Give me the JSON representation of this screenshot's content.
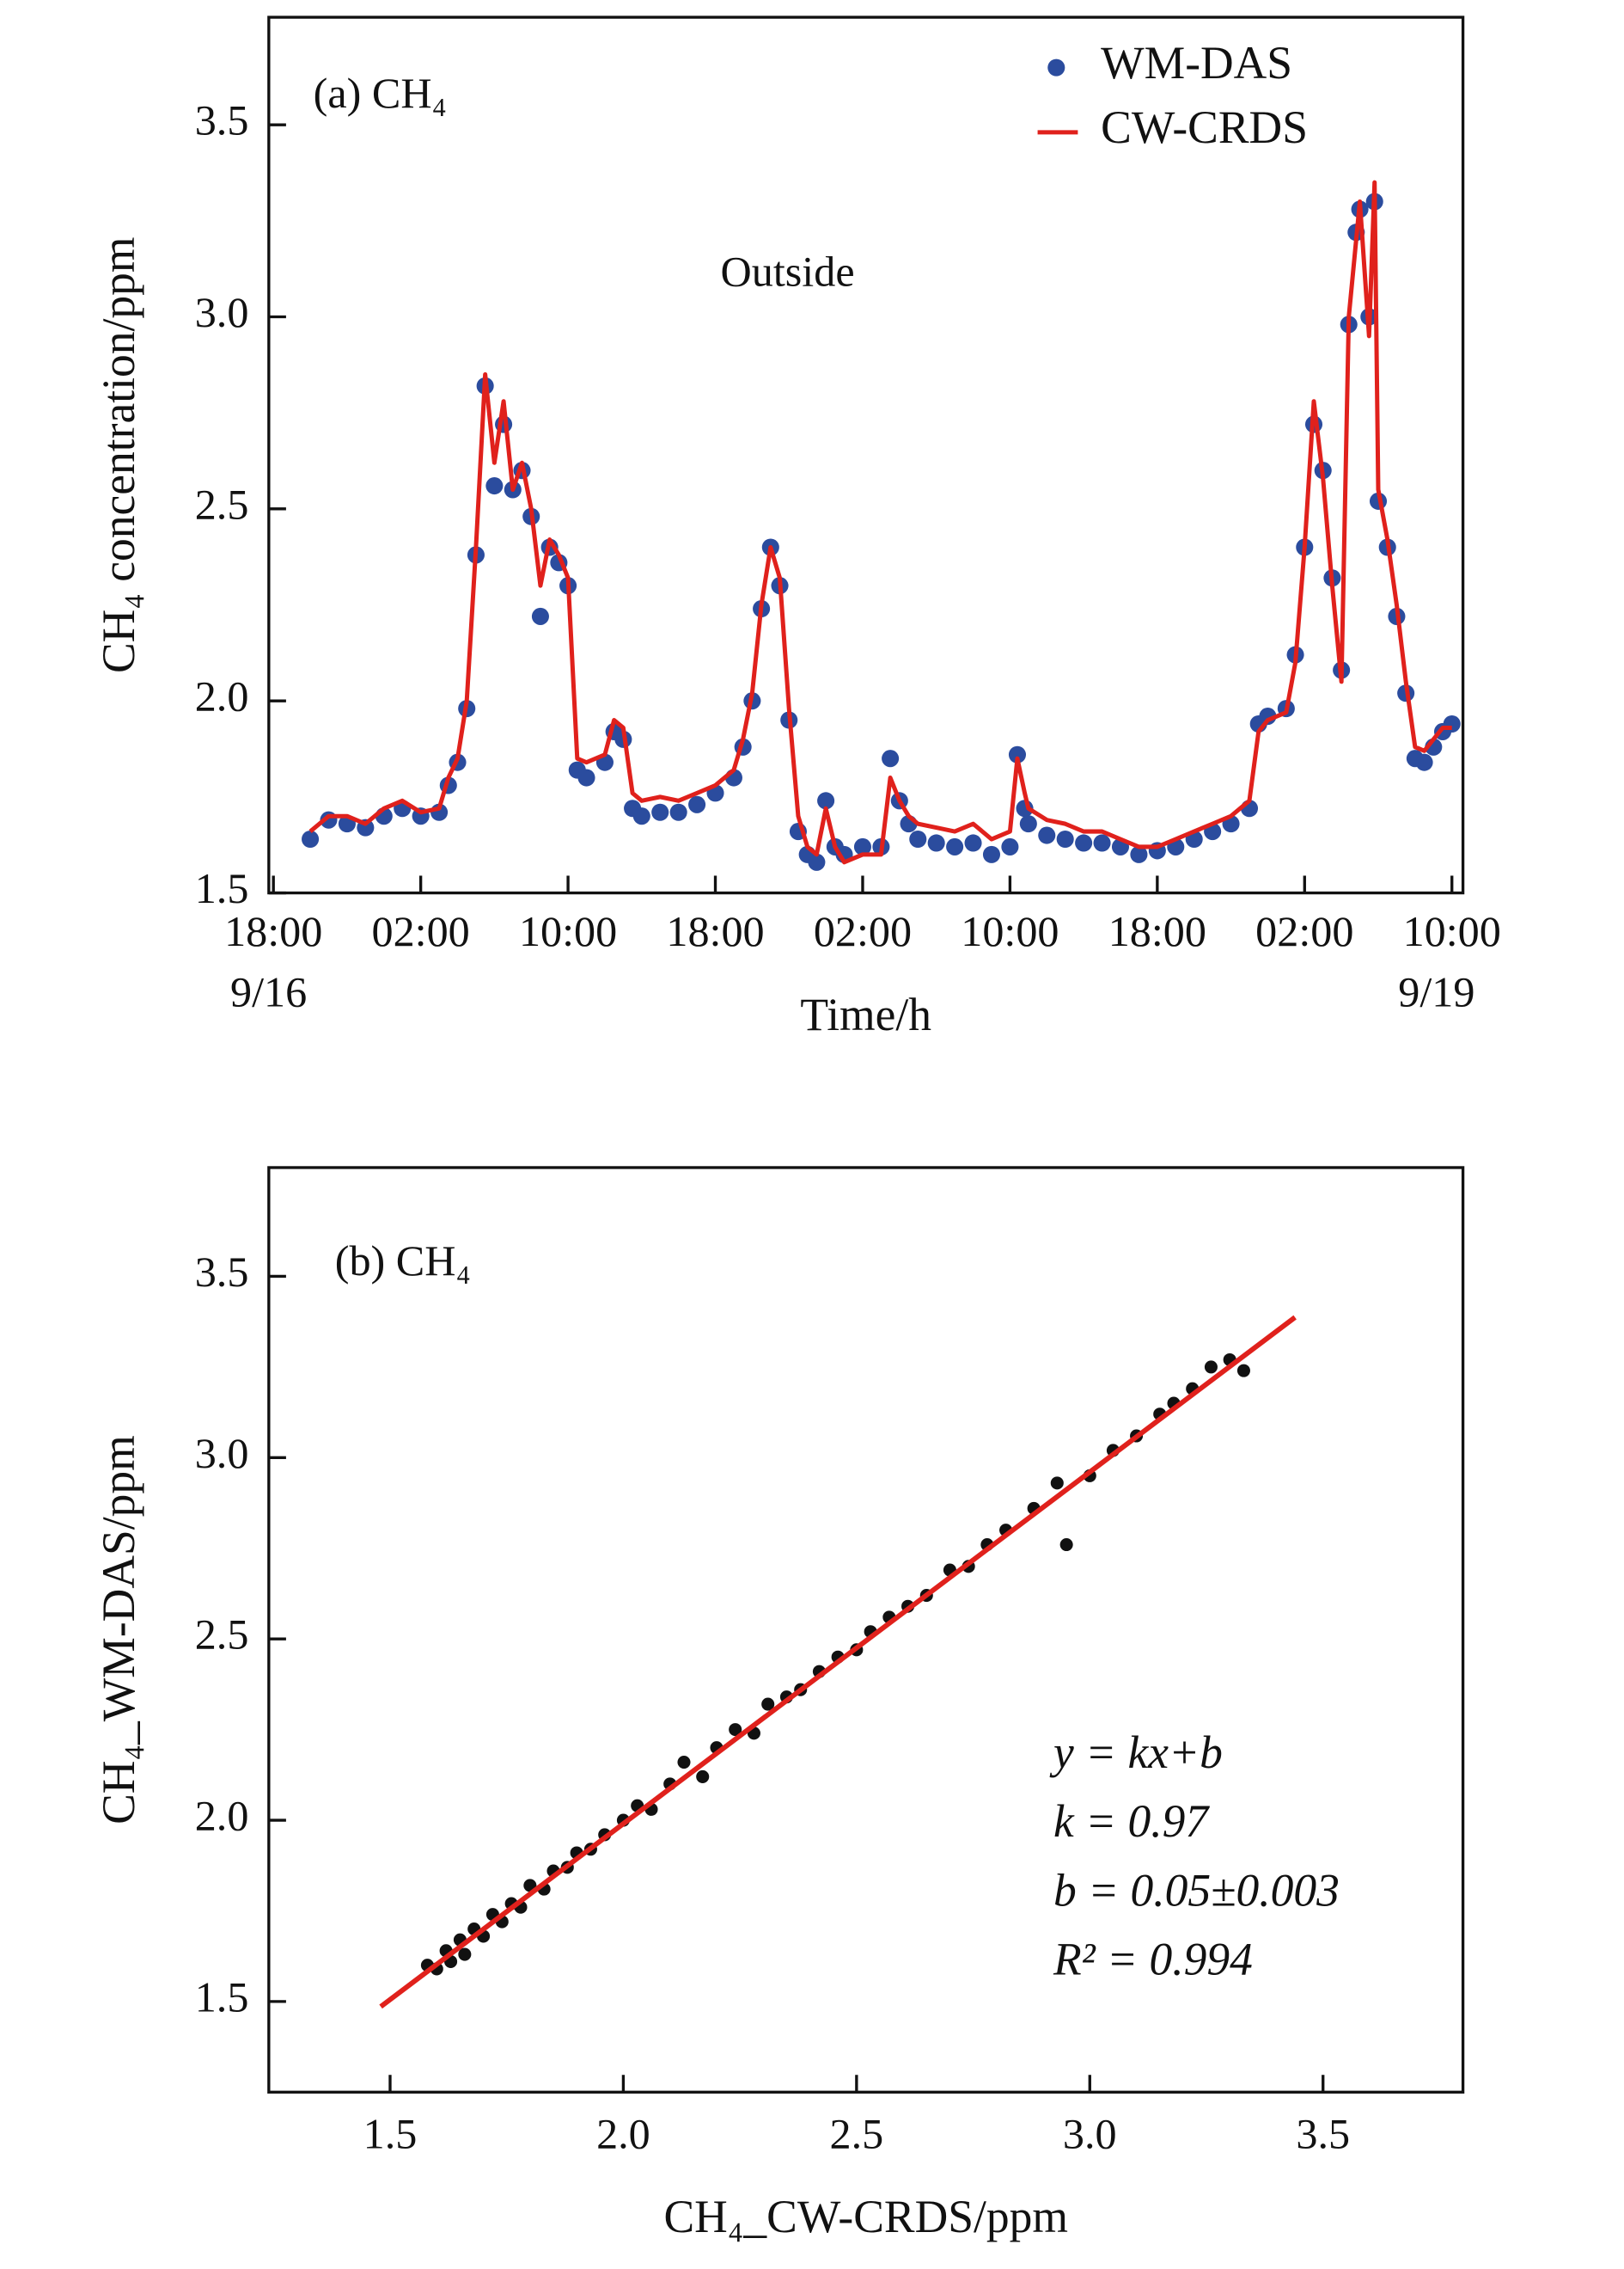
{
  "chart_data": [
    {
      "type": "line",
      "annotations": [
        "(a) CH₄",
        "Outside"
      ],
      "xlabel": "Time/h",
      "ylabel": "CH₄ concentration/ppm",
      "xlim": [
        -0.25,
        64.6
      ],
      "xticks": [
        {
          "value": 0,
          "label": "18:00"
        },
        {
          "value": 8,
          "label": "02:00"
        },
        {
          "value": 16,
          "label": "10:00"
        },
        {
          "value": 24,
          "label": "18:00"
        },
        {
          "value": 32,
          "label": "02:00"
        },
        {
          "value": 40,
          "label": "10:00"
        },
        {
          "value": 48,
          "label": "18:00"
        },
        {
          "value": 56,
          "label": "02:00"
        },
        {
          "value": 64,
          "label": "10:00"
        }
      ],
      "date_labels": [
        {
          "value": 0,
          "label": "9/16"
        },
        {
          "value": 64,
          "label": "9/19"
        }
      ],
      "ylim": [
        1.5,
        3.78
      ],
      "yticks": [
        {
          "value": 1.5,
          "label": "1.5"
        },
        {
          "value": 2.0,
          "label": "2.0"
        },
        {
          "value": 2.5,
          "label": "2.5"
        },
        {
          "value": 3.0,
          "label": "3.0"
        },
        {
          "value": 3.5,
          "label": "3.5"
        }
      ],
      "legend": "upper right",
      "x": [
        2,
        3,
        4,
        5,
        6,
        7,
        8,
        9,
        9.5,
        10,
        10.5,
        11,
        11.5,
        12,
        12.5,
        13,
        13.5,
        14,
        14.5,
        15,
        15.5,
        16,
        16.5,
        17,
        18,
        18.5,
        19,
        19.5,
        20,
        21,
        22,
        23,
        24,
        25,
        25.5,
        26,
        26.5,
        27,
        27.5,
        28,
        28.5,
        29,
        29.5,
        30,
        30.5,
        31,
        32,
        33,
        33.5,
        34,
        34.5,
        35,
        36,
        37,
        38,
        39,
        40,
        40.4,
        40.8,
        41,
        42,
        43,
        44,
        45,
        46,
        47,
        48,
        49,
        50,
        51,
        52,
        53,
        53.5,
        54,
        55,
        55.5,
        56,
        56.5,
        57,
        57.5,
        58,
        58.4,
        58.8,
        59,
        59.5,
        59.8,
        60,
        60.5,
        61,
        61.5,
        62,
        62.5,
        63,
        63.5,
        64
      ],
      "series": [
        {
          "name": "WM-DAS",
          "mode": "markers",
          "color": "#2b4c9e",
          "values": [
            1.64,
            1.69,
            1.68,
            1.67,
            1.7,
            1.72,
            1.7,
            1.71,
            1.78,
            1.84,
            1.98,
            2.38,
            2.82,
            2.56,
            2.72,
            2.55,
            2.6,
            2.48,
            2.22,
            2.4,
            2.36,
            2.3,
            1.82,
            1.8,
            1.84,
            1.92,
            1.9,
            1.72,
            1.7,
            1.71,
            1.71,
            1.73,
            1.76,
            1.8,
            1.88,
            2.0,
            2.24,
            2.4,
            2.3,
            1.95,
            1.66,
            1.6,
            1.58,
            1.74,
            1.62,
            1.6,
            1.62,
            1.62,
            1.85,
            1.74,
            1.68,
            1.64,
            1.63,
            1.62,
            1.63,
            1.6,
            1.62,
            1.86,
            1.72,
            1.68,
            1.65,
            1.64,
            1.63,
            1.63,
            1.62,
            1.6,
            1.61,
            1.62,
            1.64,
            1.66,
            1.68,
            1.72,
            1.94,
            1.96,
            1.98,
            2.12,
            2.4,
            2.72,
            2.6,
            2.32,
            2.08,
            2.98,
            3.22,
            3.28,
            3.0,
            3.3,
            2.52,
            2.4,
            2.22,
            2.02,
            1.85,
            1.84,
            1.88,
            1.92,
            1.94
          ]
        },
        {
          "name": "CW-CRDS",
          "mode": "line",
          "color": "#e0211c",
          "values": [
            1.66,
            1.7,
            1.7,
            1.68,
            1.72,
            1.74,
            1.71,
            1.72,
            1.8,
            1.85,
            2.0,
            2.4,
            2.85,
            2.62,
            2.78,
            2.55,
            2.62,
            2.5,
            2.3,
            2.42,
            2.38,
            2.32,
            1.85,
            1.84,
            1.86,
            1.95,
            1.93,
            1.76,
            1.74,
            1.75,
            1.74,
            1.76,
            1.78,
            1.82,
            1.9,
            2.02,
            2.25,
            2.4,
            2.32,
            1.98,
            1.7,
            1.62,
            1.6,
            1.72,
            1.62,
            1.58,
            1.6,
            1.6,
            1.8,
            1.74,
            1.7,
            1.68,
            1.67,
            1.66,
            1.68,
            1.64,
            1.66,
            1.85,
            1.76,
            1.72,
            1.69,
            1.68,
            1.66,
            1.66,
            1.64,
            1.62,
            1.62,
            1.64,
            1.66,
            1.68,
            1.7,
            1.74,
            1.92,
            1.95,
            1.97,
            2.1,
            2.4,
            2.78,
            2.58,
            2.3,
            2.05,
            3.0,
            3.2,
            3.3,
            2.95,
            3.35,
            2.55,
            2.42,
            2.25,
            2.05,
            1.88,
            1.87,
            1.9,
            1.93,
            1.93
          ]
        }
      ]
    },
    {
      "type": "scatter",
      "annotations": [
        "(b) CH₄",
        "y = kx+b",
        "k = 0.97",
        "b = 0.05±0.003",
        "R² = 0.994"
      ],
      "xlabel": "CH₄_CW-CRDS/ppm",
      "ylabel": "CH₄_WM-DAS/ppm",
      "xlim": [
        1.24,
        3.8
      ],
      "xticks": [
        {
          "value": 1.5,
          "label": "1.5"
        },
        {
          "value": 2.0,
          "label": "2.0"
        },
        {
          "value": 2.5,
          "label": "2.5"
        },
        {
          "value": 3.0,
          "label": "3.0"
        },
        {
          "value": 3.5,
          "label": "3.5"
        }
      ],
      "ylim": [
        1.25,
        3.8
      ],
      "yticks": [
        {
          "value": 1.5,
          "label": "1.5"
        },
        {
          "value": 2.0,
          "label": "2.0"
        },
        {
          "value": 2.5,
          "label": "2.5"
        },
        {
          "value": 3.0,
          "label": "3.0"
        },
        {
          "value": 3.5,
          "label": "3.5"
        }
      ],
      "color": "#111111",
      "x": [
        1.58,
        1.6,
        1.62,
        1.63,
        1.65,
        1.66,
        1.68,
        1.7,
        1.72,
        1.74,
        1.76,
        1.78,
        1.8,
        1.83,
        1.85,
        1.88,
        1.9,
        1.93,
        1.96,
        2.0,
        2.03,
        2.06,
        2.1,
        2.13,
        2.17,
        2.2,
        2.24,
        2.28,
        2.31,
        2.35,
        2.38,
        2.42,
        2.46,
        2.5,
        2.53,
        2.57,
        2.61,
        2.65,
        2.7,
        2.74,
        2.78,
        2.82,
        2.88,
        2.93,
        2.95,
        3.0,
        3.05,
        3.1,
        3.15,
        3.18,
        3.22,
        3.26,
        3.3,
        3.33
      ],
      "y": [
        1.6,
        1.59,
        1.64,
        1.61,
        1.67,
        1.63,
        1.7,
        1.68,
        1.74,
        1.72,
        1.77,
        1.76,
        1.82,
        1.81,
        1.86,
        1.87,
        1.91,
        1.92,
        1.96,
        2.0,
        2.04,
        2.03,
        2.1,
        2.16,
        2.12,
        2.2,
        2.25,
        2.24,
        2.32,
        2.34,
        2.36,
        2.41,
        2.45,
        2.47,
        2.52,
        2.56,
        2.59,
        2.62,
        2.69,
        2.7,
        2.76,
        2.8,
        2.86,
        2.93,
        2.76,
        2.95,
        3.02,
        3.06,
        3.12,
        3.15,
        3.19,
        3.25,
        3.27,
        3.24
      ],
      "fit_line": {
        "x": [
          1.48,
          3.44
        ],
        "y": [
          1.486,
          3.387
        ],
        "color": "#e0211c"
      }
    }
  ]
}
